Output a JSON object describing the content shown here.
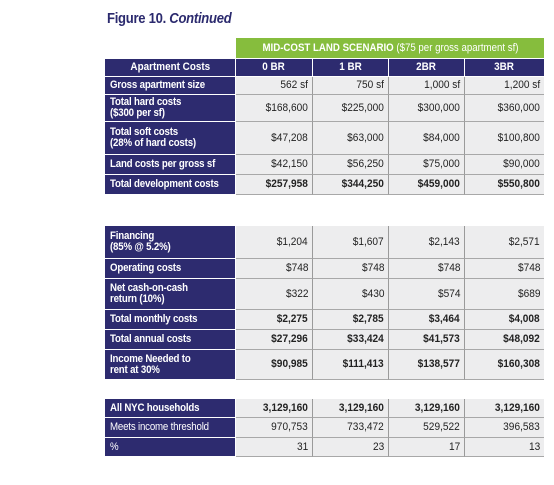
{
  "figure": {
    "title_prefix": "Figure 10.",
    "title_suffix": "Continued"
  },
  "scenario": {
    "label_bold": "MID-COST LAND SCENARIO",
    "label_rest": " ($75 per gross apartment sf)"
  },
  "development": {
    "header": [
      "Apartment Costs",
      "0 BR",
      "1 BR",
      "2BR",
      "3BR"
    ],
    "rows": [
      {
        "label": "Gross apartment size",
        "values": [
          "562 sf",
          "750 sf",
          "1,000 sf",
          "1,200 sf"
        ],
        "bold": false
      },
      {
        "label": "Total hard costs",
        "label2": "($300 per sf)",
        "values": [
          "$168,600",
          "$225,000",
          "$300,000",
          "$360,000"
        ],
        "bold": false
      },
      {
        "label": "Total soft costs",
        "label2": "(28% of hard costs)",
        "values": [
          "$47,208",
          "$63,000",
          "$84,000",
          "$100,800"
        ],
        "bold": false
      },
      {
        "label": "Land costs per gross sf",
        "values": [
          "$42,150",
          "$56,250",
          "$75,000",
          "$90,000"
        ],
        "bold": false
      },
      {
        "label": "Total development costs",
        "values": [
          "$257,958",
          "$344,250",
          "$459,000",
          "$550,800"
        ],
        "bold": true
      }
    ]
  },
  "operating": {
    "rows": [
      {
        "label": "Financing",
        "label2": "(85% @ 5.2%)",
        "values": [
          "$1,204",
          "$1,607",
          "$2,143",
          "$2,571"
        ],
        "bold": false
      },
      {
        "label": "Operating costs",
        "values": [
          "$748",
          "$748",
          "$748",
          "$748"
        ],
        "bold": false
      },
      {
        "label": "Net cash-on-cash",
        "label2": "return (10%)",
        "values": [
          "$322",
          "$430",
          "$574",
          "$689"
        ],
        "bold": false
      },
      {
        "label": "Total monthly costs",
        "values": [
          "$2,275",
          "$2,785",
          "$3,464",
          "$4,008"
        ],
        "bold": true
      },
      {
        "label": "Total annual costs",
        "values": [
          "$27,296",
          "$33,424",
          "$41,573",
          "$48,092"
        ],
        "bold": true
      },
      {
        "label": "Income Needed to",
        "label2": "rent at 30%",
        "values": [
          "$90,985",
          "$111,413",
          "$138,577",
          "$160,308"
        ],
        "bold": true
      }
    ]
  },
  "households": {
    "rows": [
      {
        "label": "All NYC households",
        "values": [
          "3,129,160",
          "3,129,160",
          "3,129,160",
          "3,129,160"
        ],
        "bold": true,
        "labelBold": true
      },
      {
        "label": "Meets income threshold",
        "values": [
          "970,753",
          "733,472",
          "529,522",
          "396,583"
        ],
        "bold": false,
        "labelBold": false
      },
      {
        "label": "%",
        "values": [
          "31",
          "23",
          "17",
          "13"
        ],
        "bold": false,
        "labelBold": false
      }
    ]
  }
}
